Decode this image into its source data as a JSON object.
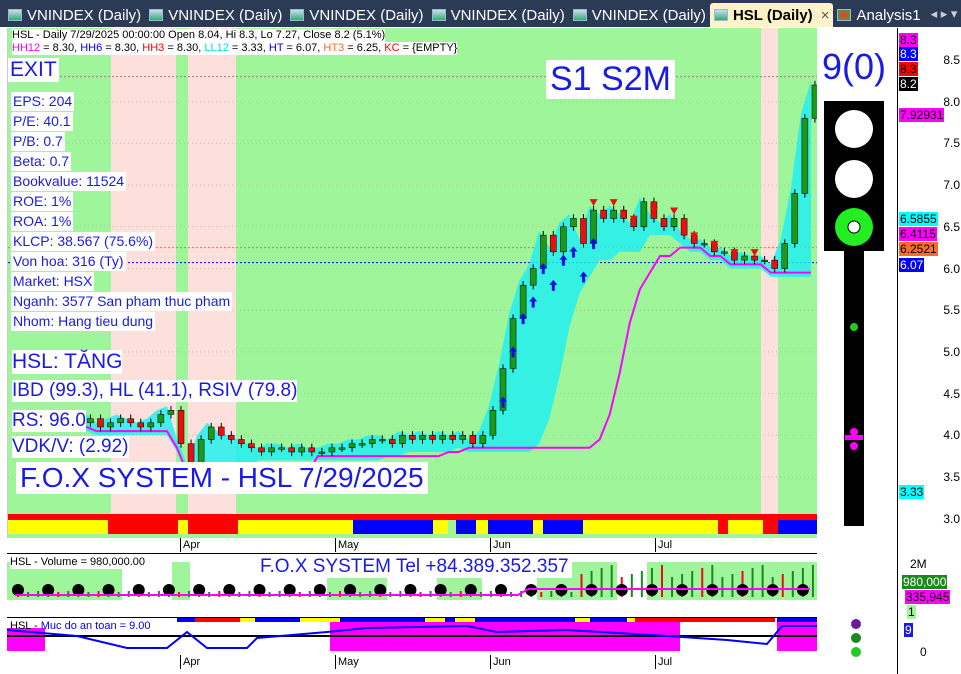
{
  "tabs": [
    {
      "label": "VNINDEX (Daily)"
    },
    {
      "label": "VNINDEX (Daily)"
    },
    {
      "label": "VNINDEX (Daily)"
    },
    {
      "label": "VNINDEX (Daily)"
    },
    {
      "label": "VNINDEX (Daily)"
    },
    {
      "label": "HSL (Daily)",
      "active": true
    },
    {
      "label": "Analysis1"
    }
  ],
  "header": {
    "line1": "HSL - Daily 7/29/2025 00:00:00 Open 8.04, Hi 8.3, Lo 7.27, Close 8.2 (5.1%)",
    "line2": [
      {
        "k": "HH12",
        "v": " = 8.30, ",
        "c": "#ff00ff"
      },
      {
        "k": "HH6",
        "v": " = 8.30, ",
        "c": "#0000ff"
      },
      {
        "k": "HH3",
        "v": " = 8.30, ",
        "c": "#ff0000"
      },
      {
        "k": "LL12",
        "v": " = 3.33, ",
        "c": "#00e0e0"
      },
      {
        "k": "HT",
        "v": "  = 6.07, ",
        "c": "#0000ff"
      },
      {
        "k": "HT3",
        "v": "  = 6.25, ",
        "c": "#ff6a2a"
      },
      {
        "k": "KC",
        "v": " = {EMPTY}",
        "c": "#ff0000"
      }
    ]
  },
  "exit": "EXIT",
  "signal": "S1  S2M",
  "count": "9(0)",
  "fundamentals": [
    "EPS: 204",
    "P/E: 40.1",
    "P/B: 0.7",
    "Beta: 0.7",
    "Bookvalue: 11524",
    "ROE: 1%",
    "ROA: 1%",
    "KLCP: 38.567 (75.6%)",
    "Von hoa: 316 (Ty)",
    "Market: HSX",
    "Nganh: 3577 San pham thuc pham",
    "Nhom: Hang tieu dung"
  ],
  "status": "HSL: TĂNG",
  "ratings": "IBD (99.3), HL (41.1), RSIV (79.8)",
  "rs": "RS: 96.0",
  "vdk": "VDK/V:  (2.92)",
  "system_title": "F.O.X SYSTEM - HSL 7/29/2025",
  "price_axis": [
    "8.5",
    "8.0",
    "7.5",
    "7.0",
    "6.5",
    "6.0",
    "5.5",
    "5.0",
    "4.5",
    "4.0",
    "3.5",
    "3.0"
  ],
  "price_tags": [
    {
      "v": "8.3",
      "bg": "#ff00ff"
    },
    {
      "v": "8.3",
      "bg": "#0000ff",
      "fg": "#fff"
    },
    {
      "v": "8.3",
      "bg": "#ff0000"
    },
    {
      "v": "8.2",
      "bg": "#000",
      "fg": "#fff"
    },
    {
      "v": "7.92931",
      "bg": "#ff00ff"
    },
    {
      "v": "6.5855",
      "bg": "#00ffff"
    },
    {
      "v": "6.4115",
      "bg": "#ff00ff"
    },
    {
      "v": "6.2521",
      "bg": "#ff6a2a"
    },
    {
      "v": "6.07",
      "bg": "#0000ff",
      "fg": "#fff"
    },
    {
      "v": "3.33",
      "bg": "#00ffff"
    }
  ],
  "months": [
    "Apr",
    "May",
    "Jun",
    "Jul"
  ],
  "volume": {
    "label": "HSL - Volume = 980,000.00",
    "title": "F.O.X SYSTEM Tel +84.389.352.357",
    "axis": "2M",
    "tag1": "980,000",
    "tag2": "335,945",
    "tag3": "1"
  },
  "safety": {
    "label_prefix": "HSL - ",
    "label": "Muc do an toan = 9.00",
    "axis": "0",
    "tag": "9"
  },
  "chart_data": {
    "type": "candlestick",
    "ylim": [
      2.8,
      8.7
    ],
    "close": [
      4.2,
      4.25,
      4.2,
      4.15,
      4.2,
      4.2,
      4.15,
      4.2,
      4.1,
      4.15,
      4.2,
      4.15,
      4.1,
      4.15,
      4.25,
      4.3,
      3.9,
      3.6,
      3.95,
      4.1,
      4.0,
      3.95,
      3.9,
      3.85,
      3.8,
      3.85,
      3.85,
      3.8,
      3.85,
      3.8,
      3.8,
      3.85,
      3.85,
      3.9,
      3.9,
      3.95,
      3.95,
      3.9,
      4.0,
      3.95,
      4.0,
      3.95,
      4.0,
      3.95,
      4.0,
      3.9,
      4.0,
      4.3,
      4.8,
      5.4,
      5.8,
      6.0,
      6.4,
      6.2,
      6.5,
      6.6,
      6.3,
      6.7,
      6.6,
      6.7,
      6.6,
      6.5,
      6.8,
      6.6,
      6.5,
      6.6,
      6.4,
      6.3,
      6.3,
      6.2,
      6.2,
      6.1,
      6.15,
      6.1,
      6.1,
      6.0,
      6.3,
      6.9,
      7.8,
      8.2
    ]
  }
}
